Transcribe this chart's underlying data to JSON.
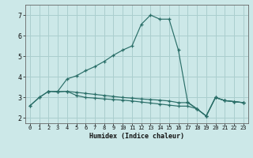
{
  "xlabel": "Humidex (Indice chaleur)",
  "background_color": "#cce8e8",
  "grid_color": "#aacece",
  "line_color": "#2a6e68",
  "xlim": [
    -0.5,
    23.5
  ],
  "ylim": [
    1.75,
    7.5
  ],
  "xticks": [
    0,
    1,
    2,
    3,
    4,
    5,
    6,
    7,
    8,
    9,
    10,
    11,
    12,
    13,
    14,
    15,
    16,
    17,
    18,
    19,
    20,
    21,
    22,
    23
  ],
  "yticks": [
    2,
    3,
    4,
    5,
    6,
    7
  ],
  "curve1_x": [
    0,
    1,
    2,
    3,
    4,
    5,
    6,
    7,
    8,
    9,
    10,
    11,
    12,
    13,
    14,
    15,
    16,
    17,
    18,
    19,
    20,
    21,
    22,
    23
  ],
  "curve1_y": [
    2.6,
    3.0,
    3.3,
    3.3,
    3.9,
    4.05,
    4.3,
    4.5,
    4.75,
    5.05,
    5.3,
    5.5,
    6.55,
    7.0,
    6.8,
    6.8,
    5.3,
    2.78,
    2.45,
    2.1,
    3.0,
    2.85,
    2.8,
    2.75
  ],
  "curve2_x": [
    0,
    1,
    2,
    3,
    4,
    5,
    6,
    7,
    8,
    9,
    10,
    11,
    12,
    13,
    14,
    15,
    16,
    17,
    18,
    19,
    20,
    21,
    22,
    23
  ],
  "curve2_y": [
    2.6,
    3.0,
    3.3,
    3.28,
    3.3,
    3.25,
    3.2,
    3.15,
    3.1,
    3.05,
    3.0,
    2.97,
    2.93,
    2.9,
    2.87,
    2.83,
    2.75,
    2.75,
    2.45,
    2.1,
    3.0,
    2.85,
    2.8,
    2.75
  ],
  "curve3_x": [
    2,
    3,
    4,
    5,
    6,
    7,
    8,
    9,
    10,
    11,
    12,
    13,
    14,
    15,
    16,
    17,
    18,
    19,
    20,
    21,
    22,
    23
  ],
  "curve3_y": [
    3.3,
    3.28,
    3.3,
    3.1,
    3.0,
    2.97,
    2.93,
    2.9,
    2.87,
    2.83,
    2.78,
    2.73,
    2.68,
    2.63,
    2.58,
    2.58,
    2.45,
    2.1,
    3.0,
    2.85,
    2.8,
    2.75
  ]
}
